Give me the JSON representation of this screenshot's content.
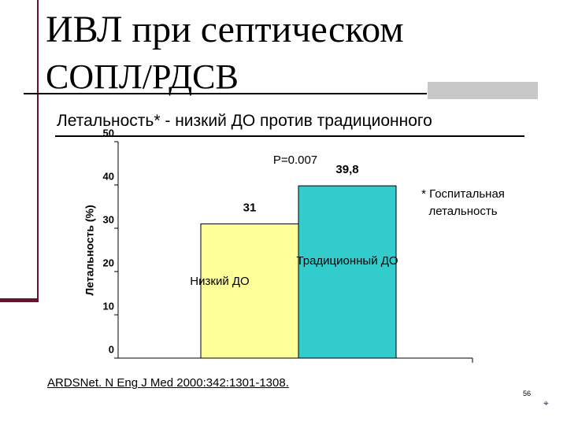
{
  "slide": {
    "title_lines": [
      "ИВЛ при септическом",
      "СОПЛ/РДСВ"
    ],
    "subtitle": "Летальность* - низкий ДО против традиционного",
    "citation": "ARDSNet. N Eng J Med 2000:342:1301-1308.",
    "page_number": "56"
  },
  "chart_data": {
    "type": "bar",
    "y_label": "Летальность (%)",
    "categories": [
      "Низкий ДО",
      "Традиционный ДО"
    ],
    "values": [
      31,
      39.8
    ],
    "value_labels": [
      "31",
      "39,8"
    ],
    "colors": [
      "#ffff99",
      "#33cccc"
    ],
    "ylim": [
      0,
      50
    ],
    "yticks": [
      0,
      10,
      20,
      30,
      40,
      50
    ],
    "annotations": [
      "P=0.007",
      "* Госпитальная летальность"
    ]
  }
}
